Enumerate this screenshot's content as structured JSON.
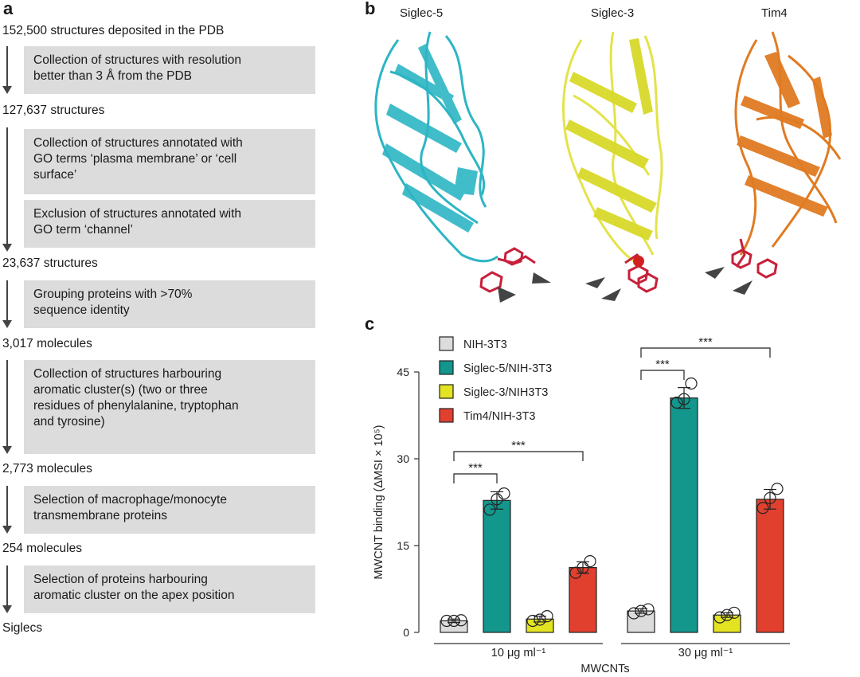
{
  "panel_a": {
    "letter": "a",
    "counts": [
      "152,500 structures deposited in the PDB",
      "127,637 structures",
      "23,637 structures",
      "3,017 molecules",
      "2,773 molecules",
      "254 molecules",
      "Siglecs"
    ],
    "boxes": [
      [
        "Collection of structures with resolution",
        "better than 3 Å from the PDB"
      ],
      [
        "Collection of structures annotated with",
        "GO terms ‘plasma membrane’ or ‘cell",
        "surface’"
      ],
      [
        "Exclusion of structures annotated with",
        "GO term ‘channel’"
      ],
      [
        "Grouping proteins with >70%",
        "sequence identity"
      ],
      [
        "Collection of structures harbouring",
        "aromatic cluster(s) (two or three",
        "residues of phenylalanine, tryptophan",
        "and tyrosine)"
      ],
      [
        "Selection of macrophage/monocyte",
        "transmembrane proteins"
      ],
      [
        "Selection of proteins harbouring",
        "aromatic cluster on the apex position"
      ]
    ]
  },
  "panel_b": {
    "letter": "b",
    "structures": [
      "Siglec-5",
      "Siglec-3",
      "Tim4"
    ],
    "colors": [
      "#2db5c4",
      "#e3e34a",
      "#e07b22"
    ],
    "aromatic_color": "#c8203a"
  },
  "panel_c": {
    "letter": "c"
  },
  "chart_data": {
    "type": "bar",
    "categories": [
      "10 μg ml⁻¹",
      "30 μg ml⁻¹"
    ],
    "xlabel": "MWCNTs",
    "ylabel": "MWCNT binding (ΔMSI × 10⁵)",
    "ylim": [
      0,
      45
    ],
    "yticks": [
      0,
      15,
      30,
      45
    ],
    "legend_position": "top-left",
    "series": [
      {
        "name": "NIH-3T3",
        "color": "#dcdcdc",
        "values": [
          2.0,
          3.7
        ],
        "points": [
          [
            2.0,
            2.0,
            2.1
          ],
          [
            3.3,
            3.7,
            4.0
          ]
        ]
      },
      {
        "name": "Siglec-5/NIH-3T3",
        "color": "#13968c",
        "values": [
          22.8,
          40.5
        ],
        "points": [
          [
            21.2,
            23.0,
            24.0
          ],
          [
            39.7,
            40.3,
            43.0
          ]
        ]
      },
      {
        "name": "Siglec-3/NIH3T3",
        "color": "#e3e322",
        "values": [
          2.3,
          3.0
        ],
        "points": [
          [
            2.0,
            2.2,
            2.8
          ],
          [
            2.6,
            3.0,
            3.4
          ]
        ]
      },
      {
        "name": "Tim4/NIH-3T3",
        "color": "#e2402f",
        "values": [
          11.2,
          23.0
        ],
        "points": [
          [
            10.3,
            11.2,
            12.3
          ],
          [
            21.5,
            23.2,
            24.8
          ]
        ]
      }
    ],
    "errors": [
      [
        0.3,
        0.4
      ],
      [
        1.5,
        1.8
      ],
      [
        0.5,
        0.4
      ],
      [
        1.0,
        1.7
      ]
    ],
    "significance": [
      {
        "group": 0,
        "from": 0,
        "to": 1,
        "label": "***"
      },
      {
        "group": 0,
        "from": 0,
        "to": 3,
        "label": "***"
      },
      {
        "group": 1,
        "from": 0,
        "to": 1,
        "label": "***"
      },
      {
        "group": 1,
        "from": 0,
        "to": 3,
        "label": "***"
      }
    ]
  }
}
